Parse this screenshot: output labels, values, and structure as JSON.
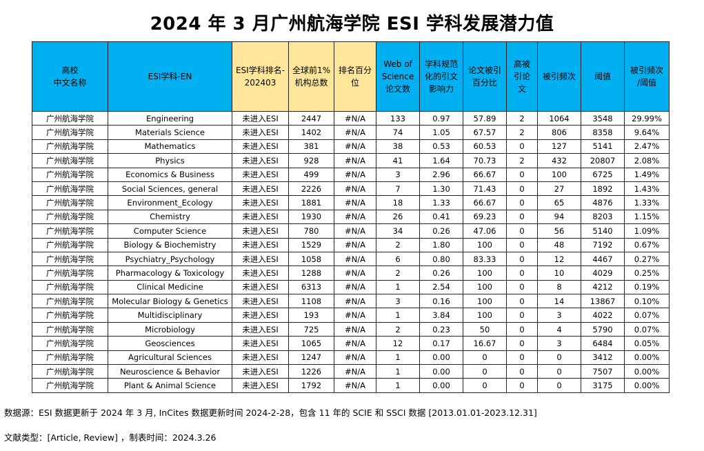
{
  "title": "2024 年 3 月广州航海学院 ESI 学科发展潜力值",
  "headers": [
    "高校\n中文名称",
    "ESI学科-EN",
    "ESI学科排名-\n202403",
    "全球前1%\n机构总数",
    "排名百分\n位",
    "Web of\nScience\n论文数",
    "学科规范\n化的引文\n影响力",
    "论文被引\n百分比",
    "高被\n引论\n文",
    "被引频次",
    "阈值",
    "被引频次\n/阈值"
  ],
  "header_colors": {
    "blue": "#00b0f0",
    "yellow": "#ffe699"
  },
  "rows": [
    [
      "广州航海学院",
      "Engineering",
      "未进入ESI",
      "2447",
      "#N/A",
      "133",
      "0.97",
      "57.89",
      "2",
      "1064",
      "3548",
      "29.99%"
    ],
    [
      "广州航海学院",
      "Materials Science",
      "未进入ESI",
      "1402",
      "#N/A",
      "74",
      "1.05",
      "67.57",
      "2",
      "806",
      "8358",
      "9.64%"
    ],
    [
      "广州航海学院",
      "Mathematics",
      "未进入ESI",
      "381",
      "#N/A",
      "38",
      "0.53",
      "60.53",
      "0",
      "127",
      "5141",
      "2.47%"
    ],
    [
      "广州航海学院",
      "Physics",
      "未进入ESI",
      "928",
      "#N/A",
      "41",
      "1.64",
      "70.73",
      "2",
      "432",
      "20807",
      "2.08%"
    ],
    [
      "广州航海学院",
      "Economics & Business",
      "未进入ESI",
      "499",
      "#N/A",
      "3",
      "2.96",
      "66.67",
      "0",
      "100",
      "6725",
      "1.49%"
    ],
    [
      "广州航海学院",
      "Social Sciences, general",
      "未进入ESI",
      "2226",
      "#N/A",
      "7",
      "1.30",
      "71.43",
      "0",
      "27",
      "1892",
      "1.43%"
    ],
    [
      "广州航海学院",
      "Environment_Ecology",
      "未进入ESI",
      "1881",
      "#N/A",
      "18",
      "1.33",
      "66.67",
      "0",
      "65",
      "4876",
      "1.33%"
    ],
    [
      "广州航海学院",
      "Chemistry",
      "未进入ESI",
      "1930",
      "#N/A",
      "26",
      "0.41",
      "69.23",
      "0",
      "94",
      "8203",
      "1.15%"
    ],
    [
      "广州航海学院",
      "Computer Science",
      "未进入ESI",
      "780",
      "#N/A",
      "34",
      "0.26",
      "47.06",
      "0",
      "56",
      "5140",
      "1.09%"
    ],
    [
      "广州航海学院",
      "Biology & Biochemistry",
      "未进入ESI",
      "1529",
      "#N/A",
      "2",
      "1.80",
      "100",
      "0",
      "48",
      "7192",
      "0.67%"
    ],
    [
      "广州航海学院",
      "Psychiatry_Psychology",
      "未进入ESI",
      "1058",
      "#N/A",
      "6",
      "0.80",
      "83.33",
      "0",
      "12",
      "4467",
      "0.27%"
    ],
    [
      "广州航海学院",
      "Pharmacology & Toxicology",
      "未进入ESI",
      "1288",
      "#N/A",
      "2",
      "0.26",
      "100",
      "0",
      "10",
      "4029",
      "0.25%"
    ],
    [
      "广州航海学院",
      "Clinical Medicine",
      "未进入ESI",
      "6313",
      "#N/A",
      "1",
      "2.54",
      "100",
      "0",
      "8",
      "4212",
      "0.19%"
    ],
    [
      "广州航海学院",
      "Molecular Biology & Genetics",
      "未进入ESI",
      "1108",
      "#N/A",
      "3",
      "0.16",
      "100",
      "0",
      "14",
      "13867",
      "0.10%"
    ],
    [
      "广州航海学院",
      "Multidisciplinary",
      "未进入ESI",
      "193",
      "#N/A",
      "1",
      "3.84",
      "100",
      "0",
      "3",
      "4022",
      "0.07%"
    ],
    [
      "广州航海学院",
      "Microbiology",
      "未进入ESI",
      "725",
      "#N/A",
      "2",
      "0.23",
      "50",
      "0",
      "4",
      "5790",
      "0.07%"
    ],
    [
      "广州航海学院",
      "Geosciences",
      "未进入ESI",
      "1065",
      "#N/A",
      "12",
      "0.17",
      "16.67",
      "0",
      "3",
      "6484",
      "0.05%"
    ],
    [
      "广州航海学院",
      "Agricultural Sciences",
      "未进入ESI",
      "1247",
      "#N/A",
      "1",
      "0.00",
      "0",
      "0",
      "0",
      "3412",
      "0.00%"
    ],
    [
      "广州航海学院",
      "Neuroscience & Behavior",
      "未进入ESI",
      "1226",
      "#N/A",
      "1",
      "0.00",
      "0",
      "0",
      "0",
      "7507",
      "0.00%"
    ],
    [
      "广州航海学院",
      "Plant & Animal Science",
      "未进入ESI",
      "1792",
      "#N/A",
      "1",
      "0.00",
      "0",
      "0",
      "0",
      "3175",
      "0.00%"
    ]
  ],
  "footnotes": {
    "source": "数据源：ESI 数据更新于 2024 年 3 月, InCites 数据更新时间 2024-2-28，包含 11 年的 SCIE 和 SSCI 数据 [2013.01.01-2023.12.31]",
    "doc_type": "文献类型：[Article, Review] ，制表时间：2024.3.26"
  }
}
